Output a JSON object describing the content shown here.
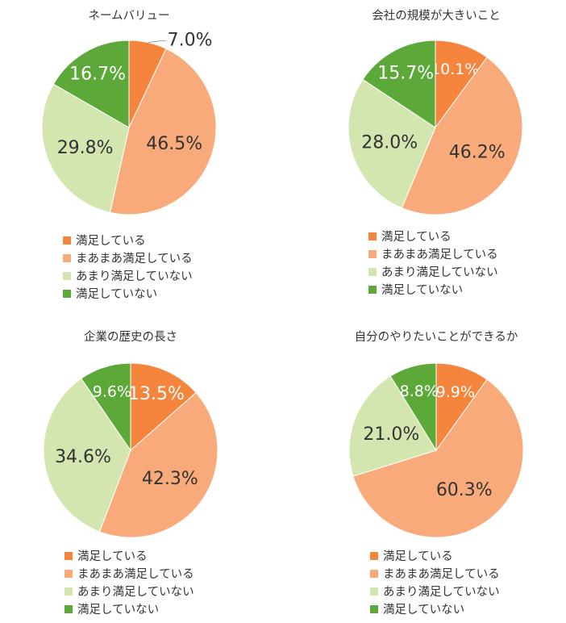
{
  "colors": {
    "satisfied": "#f5843c",
    "somewhat_satisfied": "#f9aa7a",
    "not_very_satisfied": "#d3e6b0",
    "not_satisfied": "#5ca93a"
  },
  "legend": [
    "満足している",
    "まあまあ満足している",
    "あまり満足していない",
    "満足していない"
  ],
  "chart_data": [
    {
      "type": "pie",
      "title": "ネームバリュー",
      "categories": [
        "満足している",
        "まあまあ満足している",
        "あまり満足していない",
        "満足していない"
      ],
      "values": [
        7.0,
        46.5,
        29.8,
        16.7
      ],
      "labels": [
        "7.0%",
        "46.5%",
        "29.8%",
        "16.7%"
      ],
      "legend_position": "bottom"
    },
    {
      "type": "pie",
      "title": "会社の規模が大きいこと",
      "categories": [
        "満足している",
        "まあまあ満足している",
        "あまり満足していない",
        "満足していない"
      ],
      "values": [
        10.1,
        46.2,
        28.0,
        15.7
      ],
      "labels": [
        "10.1%",
        "46.2%",
        "28.0%",
        "15.7%"
      ],
      "legend_position": "bottom"
    },
    {
      "type": "pie",
      "title": "企業の歴史の長さ",
      "categories": [
        "満足している",
        "まあまあ満足している",
        "あまり満足していない",
        "満足していない"
      ],
      "values": [
        13.5,
        42.3,
        34.6,
        9.6
      ],
      "labels": [
        "13.5%",
        "42.3%",
        "34.6%",
        "9.6%"
      ],
      "legend_position": "bottom"
    },
    {
      "type": "pie",
      "title": "自分のやりたいことができるか",
      "categories": [
        "満足している",
        "まあまあ満足している",
        "あまり満足していない",
        "満足していない"
      ],
      "values": [
        9.9,
        60.3,
        21.0,
        8.8
      ],
      "labels": [
        "9.9%",
        "60.3%",
        "21.0%",
        "8.8%"
      ],
      "legend_position": "bottom"
    }
  ]
}
